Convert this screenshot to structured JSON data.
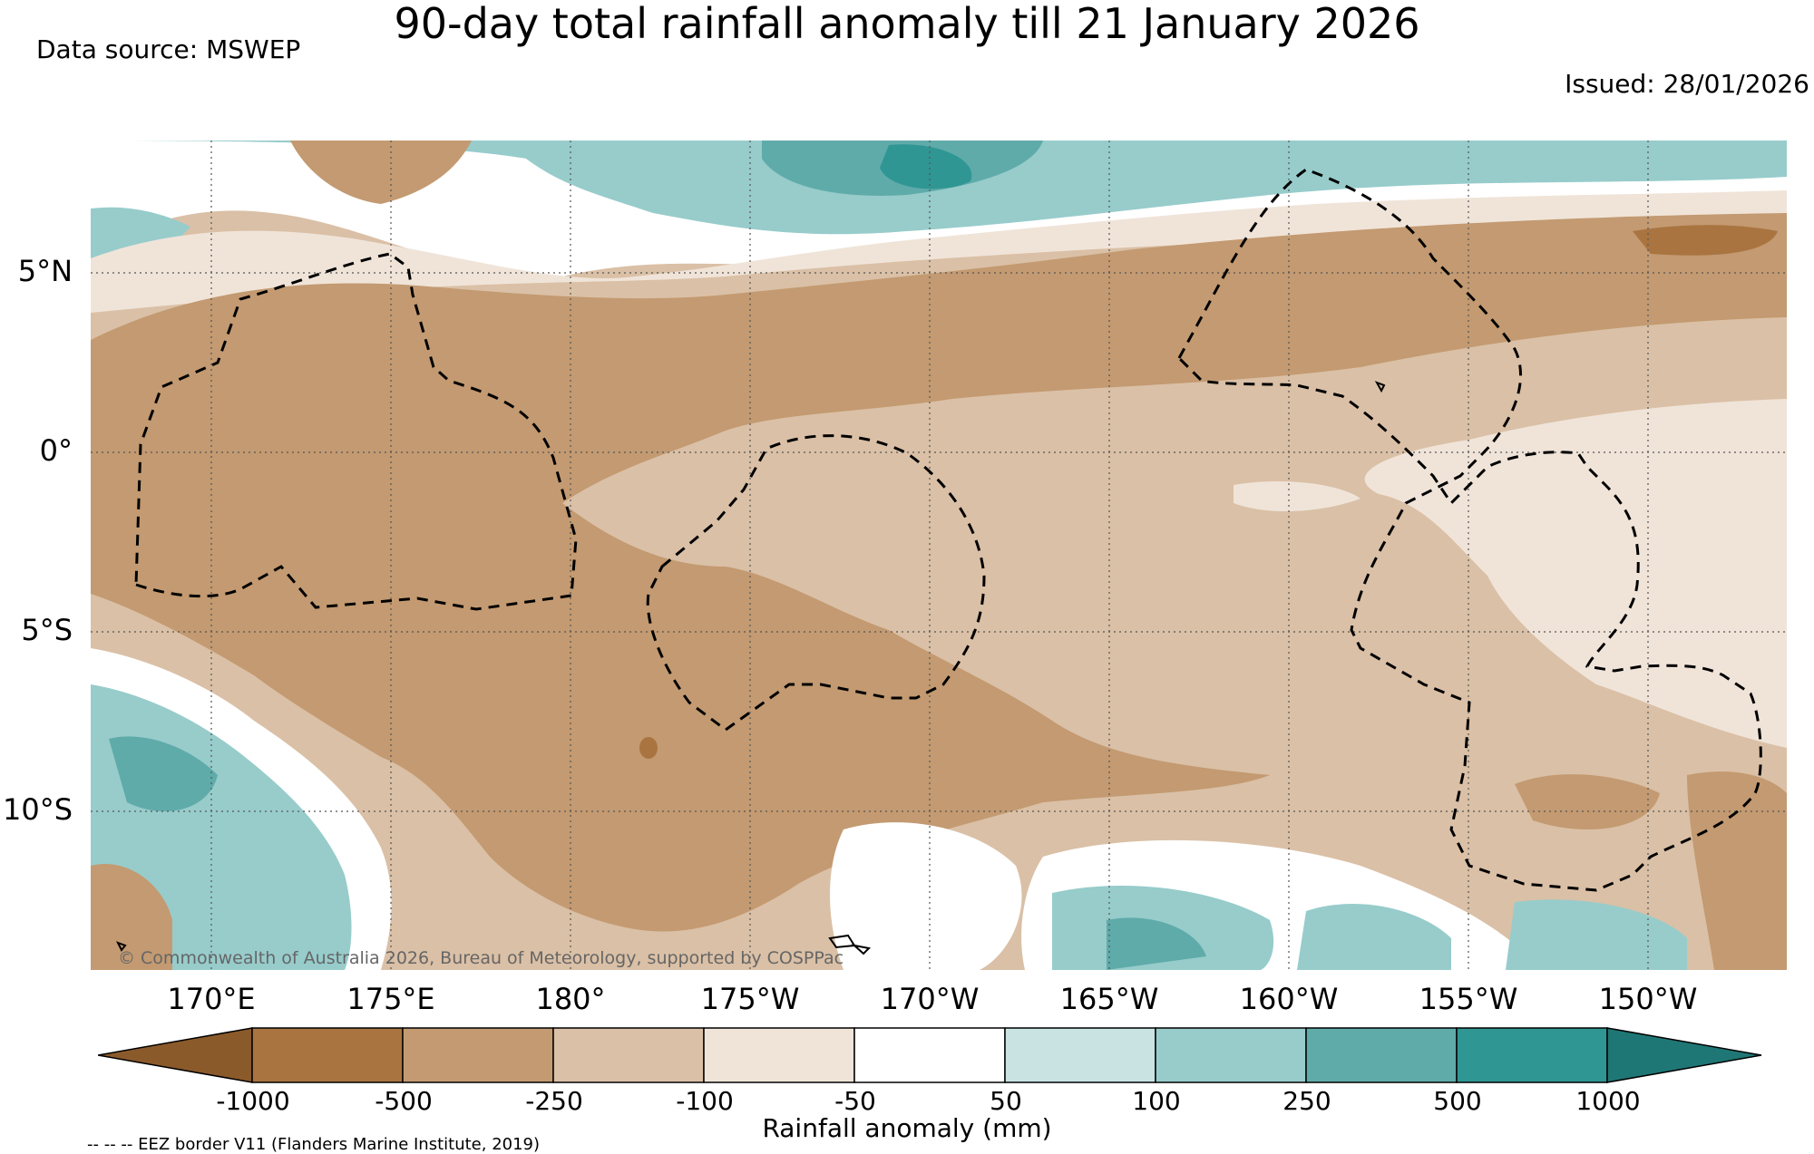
{
  "title": "90-day total rainfall anomaly till 21 January 2026",
  "data_source": "Data source: MSWEP",
  "issued": "Issued: 28/01/2026",
  "copyright": "© Commonwealth of Australia 2026, Bureau of Meteorology, supported by COSPPac",
  "lat_labels": [
    "5°N",
    "0°",
    "5°S",
    "10°S"
  ],
  "lon_labels": [
    "170°E",
    "175°E",
    "180°",
    "175°W",
    "170°W",
    "165°W",
    "160°W",
    "155°W",
    "150°W"
  ],
  "colorbar": {
    "title": "Rainfall anomaly (mm)",
    "ticks": [
      "-1000",
      "-500",
      "-250",
      "-100",
      "-50",
      "50",
      "100",
      "250",
      "500",
      "1000"
    ],
    "colors": [
      "#8b5a2b",
      "#a97440",
      "#c39a71",
      "#dac0a6",
      "#f0e4d9",
      "#ffffff",
      "#c9e3e3",
      "#97cccb",
      "#5fabaa",
      "#2f9693",
      "#1f7775"
    ]
  },
  "eez_note": "-- -- -- EEZ border V11 (Flanders Marine Institute, 2019)"
}
